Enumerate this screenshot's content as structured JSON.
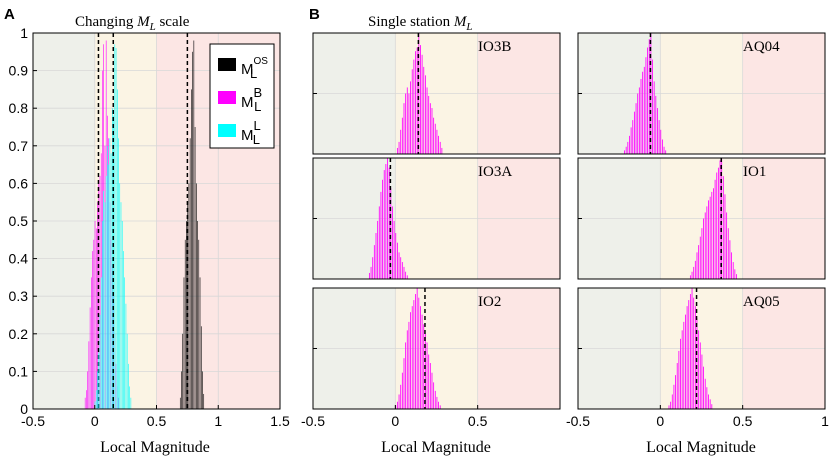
{
  "panel_labels": {
    "a": "A",
    "b": "B"
  },
  "colors": {
    "zone_low": "#eef0ea",
    "zone_mid": "#fbf4e4",
    "zone_high": "#fce6e4",
    "ml_os": "#000000",
    "ml_b": "#ff00ff",
    "ml_l": "#00ffff",
    "grid": "#d8d8d8"
  },
  "chart_data": [
    {
      "id": "A",
      "type": "bar",
      "title_prefix": "Changing",
      "title_var": "M",
      "title_sub": "L",
      "title_suffix": "scale",
      "xlabel": "Local Magnitude",
      "ylabel": "",
      "xlim": [
        -0.5,
        1.5
      ],
      "ylim": [
        0,
        1
      ],
      "xticks": [
        "-0.5",
        "0",
        "0.5",
        "1",
        "1.5"
      ],
      "yticks": [
        "0",
        "0.1",
        "0.2",
        "0.3",
        "0.4",
        "0.5",
        "0.6",
        "0.7",
        "0.8",
        "0.9",
        "1"
      ],
      "zones": [
        -0.5,
        0,
        0.5,
        1.5
      ],
      "bin_width": 0.01,
      "legend": [
        {
          "base": "M",
          "sub": "L",
          "sup": "OS",
          "color_key": "ml_os"
        },
        {
          "base": "M",
          "sub": "L",
          "sup": "B",
          "color_key": "ml_b"
        },
        {
          "base": "M",
          "sub": "L",
          "sup": "L",
          "color_key": "ml_l"
        }
      ],
      "series": [
        {
          "name": "ML_B",
          "color_key": "ml_b",
          "median": 0.03,
          "x0": -0.08,
          "values": [
            0.03,
            0.05,
            0.1,
            0.18,
            0.27,
            0.35,
            0.42,
            0.45,
            0.5,
            0.48,
            0.55,
            0.6,
            0.62,
            0.68,
            0.9,
            0.97,
            0.7,
            0.98,
            0.78,
            0.72,
            0.55,
            0.45,
            0.38,
            0.3,
            0.2,
            0.12,
            0.06,
            0.03
          ]
        },
        {
          "name": "ML_L",
          "color_key": "ml_l",
          "median": 0.15,
          "x0": 0.0,
          "values": [
            0.02,
            0.05,
            0.1,
            0.15,
            0.25,
            0.35,
            0.5,
            0.58,
            0.55,
            0.62,
            0.7,
            0.65,
            0.72,
            0.68,
            0.8,
            0.78,
            0.97,
            0.96,
            0.85,
            0.72,
            0.6,
            0.55,
            0.5,
            0.42,
            0.35,
            0.28,
            0.2,
            0.12,
            0.06,
            0.03
          ]
        },
        {
          "name": "ML_OS",
          "color_key": "ml_os",
          "median": 0.75,
          "x0": 0.69,
          "values": [
            0.03,
            0.1,
            0.2,
            0.35,
            0.45,
            0.5,
            0.55,
            0.6,
            0.72,
            0.85,
            0.95,
            0.98,
            0.75,
            0.6,
            0.5,
            0.45,
            0.35,
            0.22,
            0.1,
            0.04
          ]
        }
      ]
    },
    {
      "id": "B",
      "type": "bar",
      "title_prefix": "Single station",
      "title_var": "M",
      "title_sub": "L",
      "xlabel": "Local Magnitude",
      "xlim": [
        -0.5,
        1
      ],
      "xticks": [
        "-0.5",
        "0",
        "0.5",
        "1"
      ],
      "ylim": [
        0,
        1
      ],
      "zones": [
        -0.5,
        0,
        0.5,
        1
      ],
      "bin_width": 0.01,
      "stations": [
        {
          "name": "IO3B",
          "median": 0.14,
          "x0": 0.01,
          "values": [
            0.05,
            0.1,
            0.2,
            0.3,
            0.42,
            0.5,
            0.55,
            0.5,
            0.6,
            0.7,
            0.78,
            0.85,
            0.88,
            1,
            0.9,
            0.82,
            0.72,
            0.65,
            0.55,
            0.48,
            0.42,
            0.38,
            0.3,
            0.25,
            0.2,
            0.15,
            0.1,
            0.05
          ]
        },
        {
          "name": "AQ04",
          "median": -0.06,
          "x0": -0.22,
          "values": [
            0.03,
            0.06,
            0.1,
            0.15,
            0.22,
            0.28,
            0.35,
            0.42,
            0.5,
            0.55,
            0.62,
            0.68,
            0.72,
            0.8,
            0.88,
            0.95,
            1,
            0.78,
            0.6,
            0.48,
            0.38,
            0.28,
            0.2,
            0.12,
            0.06,
            0.03
          ]
        },
        {
          "name": "IO3A",
          "median": -0.03,
          "x0": -0.16,
          "values": [
            0.05,
            0.1,
            0.18,
            0.28,
            0.38,
            0.48,
            0.6,
            0.72,
            0.82,
            0.9,
            0.95,
            1,
            0.92,
            0.75,
            0.6,
            0.48,
            0.38,
            0.3,
            0.22,
            0.18,
            0.14,
            0.1,
            0.06,
            0.03
          ]
        },
        {
          "name": "IO1",
          "median": 0.37,
          "x0": 0.18,
          "values": [
            0.03,
            0.06,
            0.1,
            0.15,
            0.22,
            0.28,
            0.35,
            0.42,
            0.5,
            0.55,
            0.6,
            0.65,
            0.68,
            0.72,
            0.75,
            0.82,
            0.88,
            0.92,
            0.98,
            1,
            0.85,
            0.7,
            0.55,
            0.42,
            0.32,
            0.22,
            0.14,
            0.08,
            0.04
          ]
        },
        {
          "name": "IO2",
          "median": 0.18,
          "x0": 0.0,
          "values": [
            0.03,
            0.06,
            0.12,
            0.2,
            0.3,
            0.42,
            0.55,
            0.65,
            0.72,
            0.8,
            0.85,
            0.9,
            0.95,
            1,
            0.92,
            0.85,
            0.78,
            0.7,
            0.62,
            0.55,
            0.45,
            0.38,
            0.3,
            0.22,
            0.15,
            0.1,
            0.06,
            0.03
          ]
        },
        {
          "name": "AQ05",
          "median": 0.22,
          "x0": 0.05,
          "values": [
            0.03,
            0.06,
            0.12,
            0.2,
            0.28,
            0.38,
            0.48,
            0.58,
            0.65,
            0.72,
            0.78,
            0.85,
            0.9,
            0.95,
            1,
            0.92,
            0.85,
            0.75,
            0.65,
            0.55,
            0.45,
            0.35,
            0.25,
            0.18,
            0.12,
            0.08,
            0.04
          ]
        }
      ]
    }
  ]
}
